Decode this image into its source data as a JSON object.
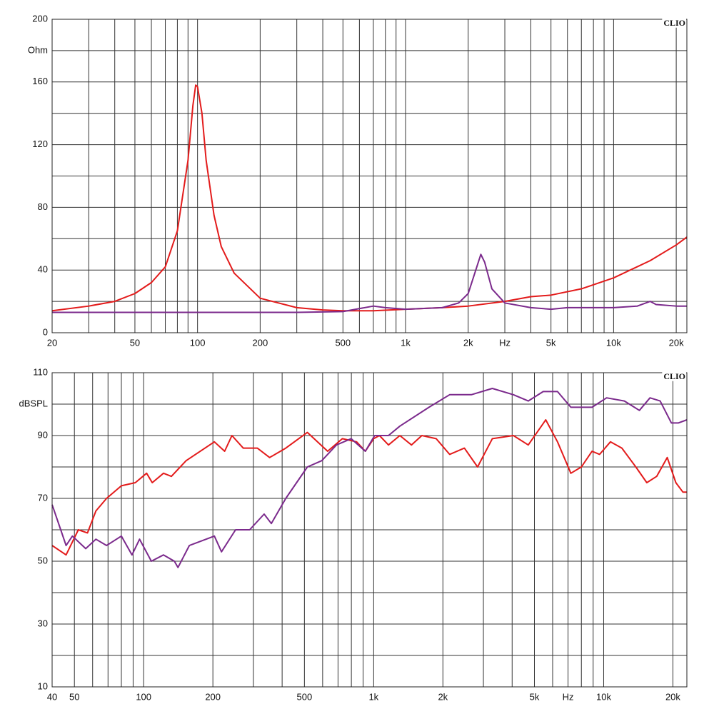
{
  "chart_data": [
    {
      "type": "line",
      "xscale": "log",
      "grid": true,
      "watermark": "CLIO",
      "xlim": [
        20,
        22500
      ],
      "ylim": [
        0,
        200
      ],
      "xticks": [
        20,
        50,
        100,
        200,
        500,
        {
          "value": 1000,
          "label": "1k"
        },
        {
          "value": 2000,
          "label": "2k"
        },
        {
          "value": 3000,
          "label": "Hz"
        },
        {
          "value": 5000,
          "label": "5k"
        },
        {
          "value": 10000,
          "label": "10k"
        },
        {
          "value": 20000,
          "label": "20k"
        }
      ],
      "xminorticks": [
        30,
        40,
        60,
        70,
        80,
        90,
        300,
        400,
        600,
        700,
        800,
        900,
        4000,
        6000,
        7000,
        8000,
        9000
      ],
      "yticks": [
        0,
        40,
        80,
        120,
        160,
        {
          "value": 180,
          "label": "Ohm"
        },
        200
      ],
      "yminorticks": [
        20,
        60,
        100,
        140
      ],
      "series": [
        {
          "color": "#e31b1b",
          "x": [
            20,
            30,
            40,
            50,
            60,
            70,
            80,
            90,
            95,
            98,
            100,
            105,
            110,
            120,
            130,
            150,
            200,
            300,
            400,
            500,
            700,
            1000,
            1500,
            2000,
            3000,
            4000,
            5000,
            7000,
            10000,
            15000,
            20000,
            22500
          ],
          "values": [
            14,
            17,
            20,
            25,
            32,
            42,
            65,
            110,
            145,
            158,
            157,
            140,
            110,
            75,
            55,
            38,
            22,
            16,
            14.5,
            14,
            14,
            15,
            16,
            17,
            20,
            23,
            24,
            28,
            35,
            46,
            56,
            61
          ]
        },
        {
          "color": "#7b2a8c",
          "x": [
            20,
            100,
            300,
            500,
            700,
            800,
            1000,
            1500,
            1800,
            2000,
            2200,
            2300,
            2400,
            2600,
            3000,
            4000,
            5000,
            6000,
            8000,
            10000,
            13000,
            15000,
            16000,
            20000,
            22500
          ],
          "values": [
            13,
            13,
            13,
            13.5,
            17,
            16,
            15,
            16,
            19,
            25,
            42,
            50,
            45,
            28,
            19,
            16,
            15,
            16,
            16,
            16,
            17,
            20,
            18,
            17,
            17
          ]
        }
      ]
    },
    {
      "type": "line",
      "xscale": "log",
      "grid": true,
      "watermark": "CLIO",
      "xlim": [
        40,
        23000
      ],
      "ylim": [
        10,
        110
      ],
      "xticks": [
        40,
        50,
        100,
        200,
        500,
        {
          "value": 1000,
          "label": "1k"
        },
        {
          "value": 2000,
          "label": "2k"
        },
        {
          "value": 5000,
          "label": "5k"
        },
        {
          "value": 7000,
          "label": "Hz"
        },
        {
          "value": 10000,
          "label": "10k"
        },
        {
          "value": 20000,
          "label": "20k"
        }
      ],
      "xminorticks": [
        60,
        70,
        80,
        90,
        300,
        400,
        600,
        700,
        800,
        900,
        3000,
        4000,
        6000,
        8000,
        9000
      ],
      "yticks": [
        10,
        30,
        50,
        70,
        90,
        {
          "value": 100,
          "label": "dBSPL"
        },
        110
      ],
      "yminorticks": [
        20,
        40,
        60,
        80
      ],
      "series": [
        {
          "color": "#e31b1b",
          "x": [
            40,
            46,
            52,
            57,
            62,
            69,
            80,
            92,
            103,
            109,
            122,
            132,
            153,
            203,
            225,
            242,
            271,
            312,
            353,
            415,
            515,
            631,
            731,
            843,
            920,
            1000,
            1060,
            1160,
            1300,
            1460,
            1620,
            1870,
            2140,
            2480,
            2830,
            3280,
            4050,
            4700,
            5600,
            6300,
            7200,
            8000,
            8900,
            9600,
            10700,
            12000,
            13800,
            15400,
            17000,
            18900,
            20600,
            22100,
            23000
          ],
          "values": [
            55,
            52,
            60,
            59,
            66,
            70,
            74,
            75,
            78,
            75,
            78,
            77,
            82,
            88,
            85,
            90,
            86,
            86,
            83,
            86,
            91,
            85,
            89,
            88,
            85,
            89,
            90,
            87,
            90,
            87,
            90,
            89,
            84,
            86,
            80,
            89,
            90,
            87,
            95,
            88,
            78,
            80,
            85,
            84,
            88,
            86,
            80,
            75,
            77,
            83,
            75,
            72,
            72
          ]
        },
        {
          "color": "#7b2a8c",
          "x": [
            40,
            43.6,
            46,
            49,
            56,
            62,
            69,
            80,
            89,
            96,
            108,
            122,
            136,
            141,
            158,
            203,
            218,
            251,
            289,
            334,
            359,
            415,
            515,
            595,
            689,
            798,
            920,
            1010,
            1160,
            1300,
            1740,
            2140,
            2660,
            3280,
            4050,
            4700,
            5460,
            6300,
            7200,
            8900,
            10300,
            12300,
            14300,
            15900,
            17600,
            19700,
            21100,
            23000
          ],
          "values": [
            68,
            60,
            55,
            58,
            54,
            57,
            55,
            58,
            52,
            57,
            50,
            52,
            50,
            48,
            55,
            58,
            53,
            60,
            60,
            65,
            62,
            70,
            80,
            82,
            87,
            89,
            85,
            90,
            90,
            93,
            99,
            103,
            103,
            105,
            103,
            101,
            104,
            104,
            99,
            99,
            102,
            101,
            98,
            102,
            101,
            94,
            94,
            95
          ]
        }
      ]
    }
  ]
}
